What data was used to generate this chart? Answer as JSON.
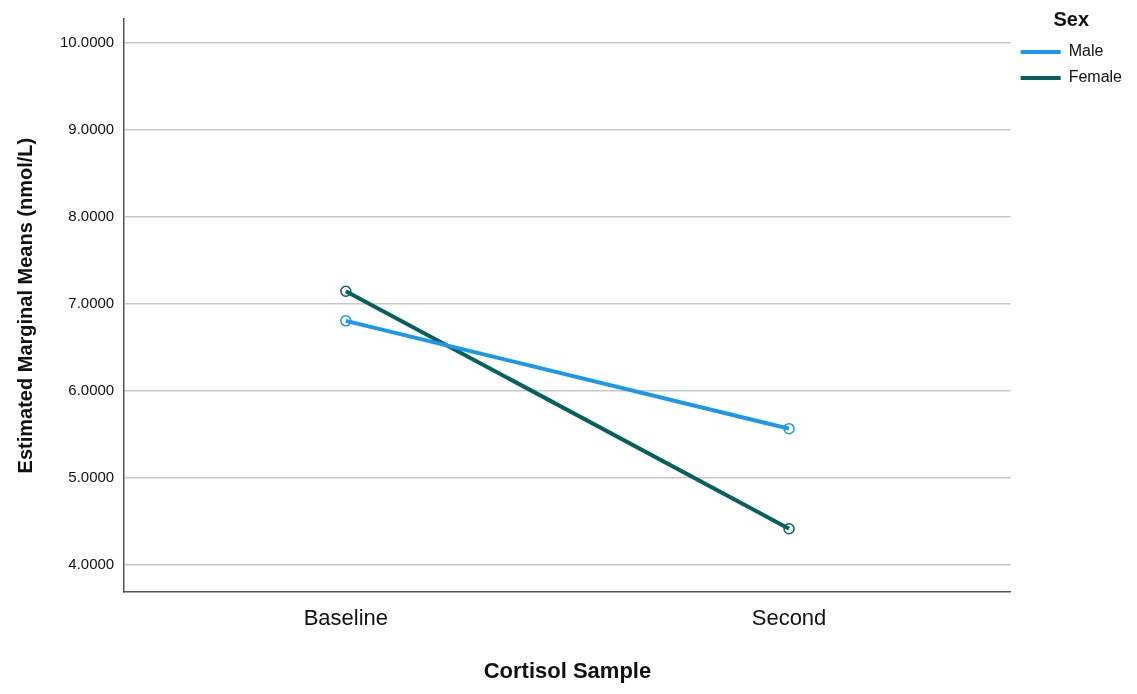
{
  "chart_data": {
    "type": "line",
    "xlabel": "Cortisol Sample",
    "ylabel": "Estimated Marginal Means (nmol/L)",
    "legend_title": "Sex",
    "legend": "top right",
    "grid": "y",
    "marker": "circle",
    "line_style": "solid",
    "categories": [
      "Baseline",
      "Second"
    ],
    "ylim": [
      3.68,
      10.27
    ],
    "yticks": [
      {
        "value": 4,
        "label": "4.0000"
      },
      {
        "value": 5,
        "label": "5.0000"
      },
      {
        "value": 6,
        "label": "6.0000"
      },
      {
        "value": 7,
        "label": "7.0000"
      },
      {
        "value": 8,
        "label": "8.0000"
      },
      {
        "value": 9,
        "label": "9.0000"
      },
      {
        "value": 10,
        "label": "10.0000"
      }
    ],
    "series": [
      {
        "name": "Male",
        "color": "#1a98ee",
        "values": [
          6.8,
          5.56
        ]
      },
      {
        "name": "Female",
        "color": "#046160",
        "values": [
          7.14,
          4.41
        ]
      }
    ]
  }
}
